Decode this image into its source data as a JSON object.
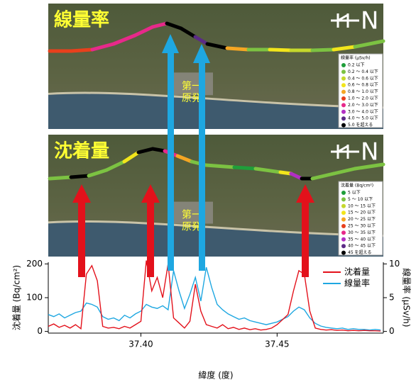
{
  "maps": [
    {
      "title": "線量率",
      "plant_label": [
        "第一",
        "原発"
      ],
      "north": "N",
      "legend": {
        "title": "線量率 (μSv/h)",
        "items": [
          {
            "label": "0.2 以下",
            "color": "#1f9e3a"
          },
          {
            "label": "0.2 ～ 0.4 以下",
            "color": "#7cc242"
          },
          {
            "label": "0.4 ～ 0.6 以下",
            "color": "#c5d82c"
          },
          {
            "label": "0.6 ～ 0.8 以下",
            "color": "#f2e51b"
          },
          {
            "label": "0.8 ～ 1.0 以下",
            "color": "#f5a623"
          },
          {
            "label": "1.0 ～ 2.0 以下",
            "color": "#e8401c"
          },
          {
            "label": "2.0 ～ 3.0 以下",
            "color": "#e7298a"
          },
          {
            "label": "3.0 ～ 4.0 以下",
            "color": "#b22fc4"
          },
          {
            "label": "4.0 ～ 5.0 以下",
            "color": "#5b2a86"
          },
          {
            "label": "5.0 を超える",
            "color": "#000000"
          }
        ]
      }
    },
    {
      "title": "沈着量",
      "plant_label": [
        "第一",
        "原発"
      ],
      "north": "N",
      "legend": {
        "title": "沈着量 (Bq/cm²)",
        "items": [
          {
            "label": "5 以下",
            "color": "#1f9e3a"
          },
          {
            "label": "5 ～ 10 以下",
            "color": "#7cc242"
          },
          {
            "label": "10 ～ 15 以下",
            "color": "#c5d82c"
          },
          {
            "label": "15 ～ 20 以下",
            "color": "#f2e51b"
          },
          {
            "label": "20 ～ 25 以下",
            "color": "#f5a623"
          },
          {
            "label": "25 ～ 30 以下",
            "color": "#e8401c"
          },
          {
            "label": "30 ～ 35 以下",
            "color": "#e7298a"
          },
          {
            "label": "35 ～ 40 以下",
            "color": "#b22fc4"
          },
          {
            "label": "40 ～ 45 以下",
            "color": "#5b2a86"
          },
          {
            "label": "45 を超える",
            "color": "#000000"
          }
        ]
      }
    }
  ],
  "chart_data": {
    "type": "line",
    "xlabel": "緯度 (度)",
    "ylabel": "沈着量 (Bq/cm²)",
    "y2label": "線量率 (μSv/h)",
    "x": [
      37.366,
      37.368,
      37.37,
      37.372,
      37.374,
      37.376,
      37.378,
      37.38,
      37.382,
      37.384,
      37.386,
      37.388,
      37.39,
      37.392,
      37.394,
      37.396,
      37.398,
      37.4,
      37.402,
      37.404,
      37.406,
      37.408,
      37.41,
      37.412,
      37.414,
      37.416,
      37.418,
      37.42,
      37.422,
      37.424,
      37.426,
      37.428,
      37.43,
      37.432,
      37.434,
      37.436,
      37.438,
      37.44,
      37.442,
      37.444,
      37.446,
      37.448,
      37.45,
      37.452,
      37.454,
      37.456,
      37.458,
      37.46,
      37.462,
      37.464,
      37.466,
      37.468,
      37.47,
      37.472,
      37.474,
      37.476,
      37.478,
      37.48,
      37.482,
      37.484,
      37.486,
      37.488
    ],
    "series": [
      {
        "name": "沈着量",
        "color": "#e3111b",
        "values": [
          15,
          22,
          12,
          18,
          10,
          20,
          8,
          170,
          195,
          150,
          15,
          10,
          12,
          8,
          15,
          10,
          20,
          30,
          210,
          120,
          160,
          100,
          200,
          40,
          25,
          10,
          30,
          140,
          60,
          20,
          15,
          10,
          20,
          8,
          12,
          6,
          10,
          5,
          8,
          4,
          6,
          10,
          20,
          35,
          50,
          120,
          180,
          170,
          60,
          10,
          6,
          4,
          5,
          3,
          4,
          2,
          3,
          2,
          3,
          2,
          2,
          1
        ]
      },
      {
        "name": "線量率",
        "color": "#1ea7e1",
        "axis": "y2",
        "values": [
          2.5,
          2.2,
          2.6,
          2.0,
          2.4,
          2.8,
          3.0,
          4.2,
          4.0,
          3.6,
          2.2,
          1.8,
          2.0,
          1.6,
          2.4,
          2.0,
          2.6,
          3.0,
          4.0,
          3.6,
          3.4,
          3.8,
          3.2,
          9.0,
          6.0,
          3.4,
          5.5,
          8.0,
          4.5,
          9.5,
          6.5,
          4.0,
          3.2,
          2.6,
          2.2,
          1.8,
          2.0,
          1.6,
          1.4,
          1.2,
          1.0,
          1.2,
          1.4,
          1.8,
          2.2,
          3.0,
          3.6,
          3.2,
          2.0,
          1.2,
          0.8,
          0.6,
          0.5,
          0.4,
          0.5,
          0.3,
          0.4,
          0.3,
          0.3,
          0.2,
          0.3,
          0.2
        ]
      }
    ],
    "xlim": [
      37.366,
      37.489
    ],
    "xticks": [
      {
        "value": 37.4,
        "label": "37.40"
      },
      {
        "value": 37.45,
        "label": "37.45"
      }
    ],
    "ylim": [
      -5,
      205
    ],
    "yticks": [
      0,
      100,
      200
    ],
    "y2lim": [
      -0.25,
      10.25
    ],
    "y2ticks": [
      0,
      5,
      10
    ],
    "legend": "top-right"
  }
}
